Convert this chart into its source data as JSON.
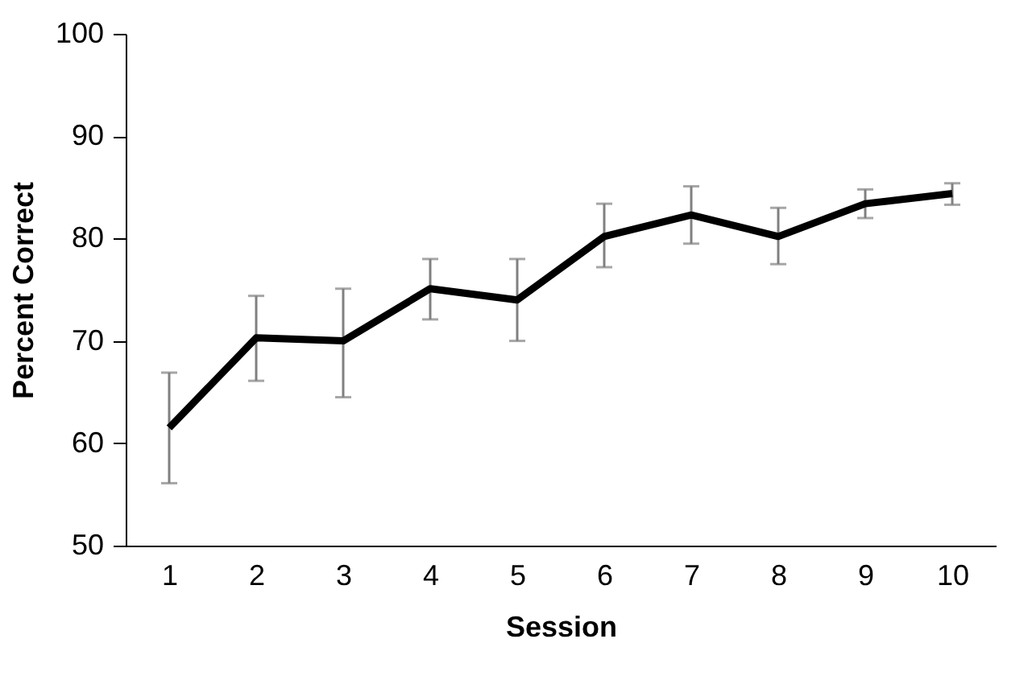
{
  "chart_data": {
    "type": "line",
    "xlabel": "Session",
    "ylabel": "Percent Correct",
    "categories": [
      "1",
      "2",
      "3",
      "4",
      "5",
      "6",
      "7",
      "8",
      "9",
      "10"
    ],
    "series": [
      {
        "color": "#000000",
        "values": [
          61.5,
          70.3,
          70.0,
          75.1,
          74.0,
          80.2,
          82.3,
          80.2,
          83.4,
          84.4
        ],
        "errors": [
          [
            56.1,
            66.9
          ],
          [
            66.1,
            74.4
          ],
          [
            64.5,
            75.1
          ],
          [
            72.1,
            78.0
          ],
          [
            70.0,
            78.0
          ],
          [
            77.2,
            83.4
          ],
          [
            79.5,
            85.1
          ],
          [
            77.5,
            83.0
          ],
          [
            82.0,
            84.8
          ],
          [
            83.3,
            85.4
          ]
        ]
      }
    ],
    "ylim": [
      50,
      100
    ],
    "yticks": [
      50,
      60,
      70,
      80,
      90,
      100
    ],
    "grid": false,
    "marker": "none",
    "line_style": "solid"
  }
}
